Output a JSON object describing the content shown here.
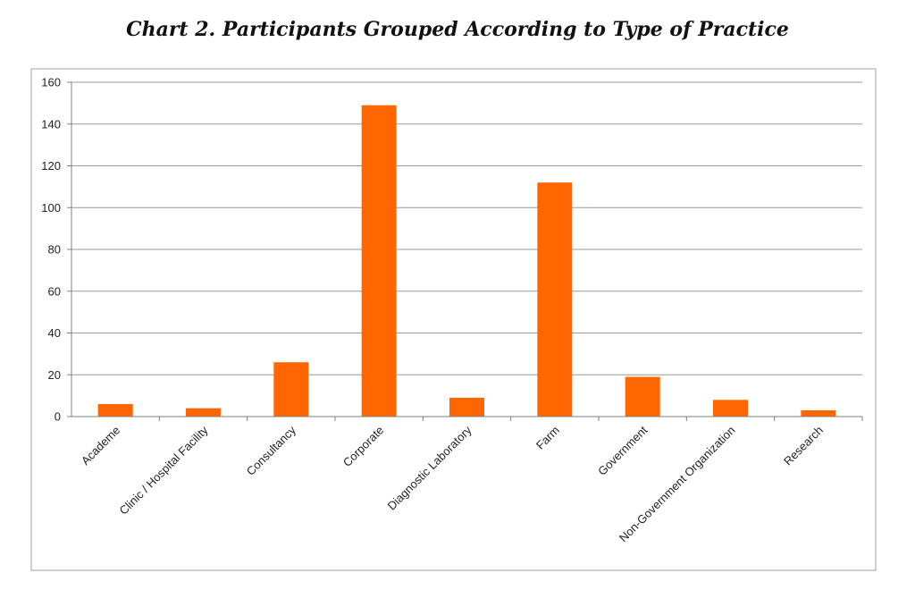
{
  "chart_data": {
    "type": "bar",
    "title": "Chart 2. Participants Grouped According to Type of Practice",
    "xlabel": "",
    "ylabel": "",
    "categories": [
      "Academe",
      "Clinic / Hospital Facility",
      "Consultancy",
      "Corporate",
      "Diagnostic Laboratory",
      "Farm",
      "Government",
      "Non-Government Organization",
      "Research"
    ],
    "values": [
      6,
      4,
      26,
      149,
      9,
      112,
      19,
      8,
      3
    ],
    "ylim": [
      0,
      160
    ],
    "yticks": [
      0,
      20,
      40,
      60,
      80,
      100,
      120,
      140,
      160
    ],
    "grid": true,
    "legend": "none",
    "colors": {
      "bar": "#FF6600",
      "grid": "#999999",
      "frame": "#A0A0A0",
      "axis": "#808080"
    }
  }
}
